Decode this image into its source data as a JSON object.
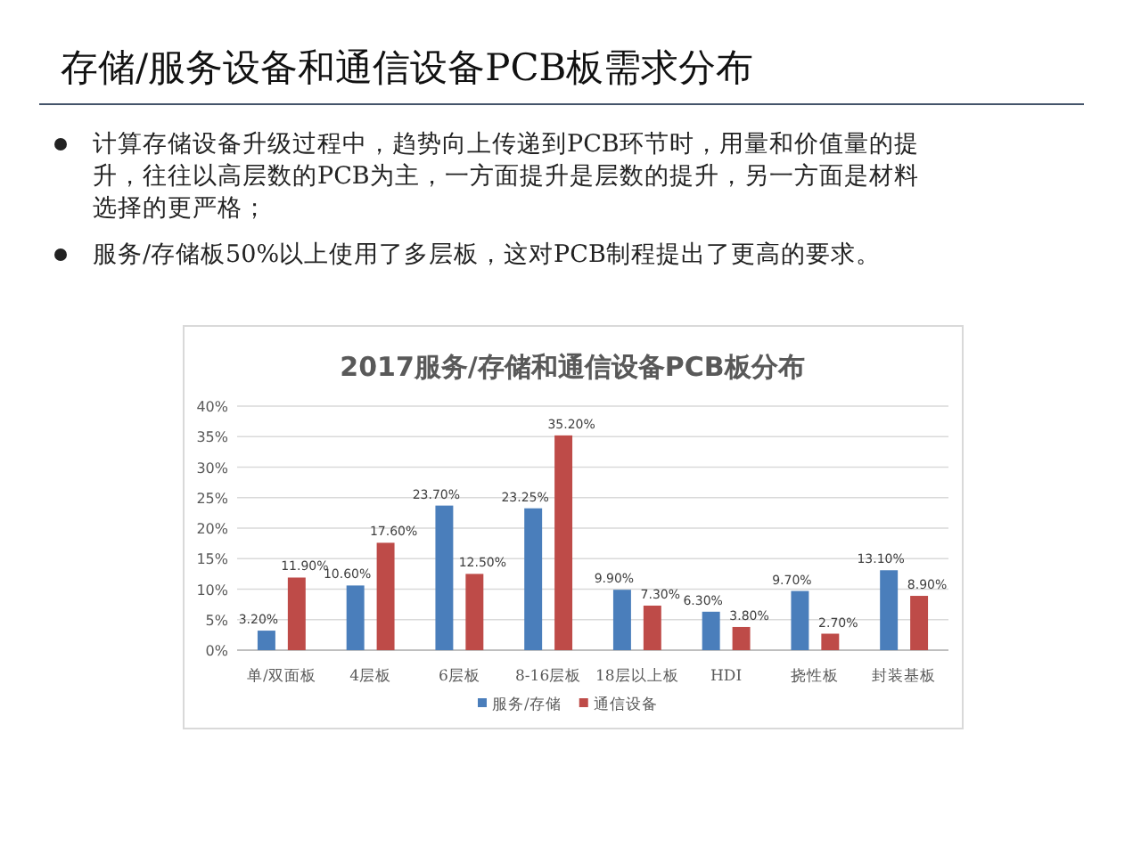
{
  "chart_data": {
    "type": "bar",
    "title": "2017服务/存储和通信设备PCB板分布",
    "annotations": [
      "存储/服务设备和通信设备PCB板需求分布",
      "计算存储设备升级过程中，趋势向上传递到PCB环节时，用量和价值量的提升，往往以高层数的PCB为主，一方面提升是层数的提升，另一方面是材料选择的更严格；",
      "服务/存储板50%以上使用了多层板，这对PCB制程提出了更高的要求。"
    ],
    "categories": [
      "单/双面板",
      "4层板",
      "6层板",
      "8-16层板",
      "18层以上板",
      "HDI",
      "挠性板",
      "封装基板"
    ],
    "series": [
      {
        "name": "服务/存储",
        "color": "#4a7ebb",
        "values": [
          3.2,
          10.6,
          23.7,
          23.25,
          9.9,
          6.3,
          9.7,
          13.1
        ],
        "value_labels": [
          "3.20%",
          "10.60%",
          "23.70%",
          "23.25%",
          "9.90%",
          "6.30%",
          "9.70%",
          "13.10%"
        ]
      },
      {
        "name": "通信设备",
        "color": "#be4b48",
        "values": [
          11.9,
          17.6,
          12.5,
          35.2,
          7.3,
          3.8,
          2.7,
          8.9
        ],
        "value_labels": [
          "11.90%",
          "17.60%",
          "12.50%",
          "35.20%",
          "7.30%",
          "3.80%",
          "2.70%",
          "8.90%"
        ]
      }
    ],
    "ylim": [
      0,
      40
    ],
    "yticks": [
      {
        "value": 0,
        "label": "0%"
      },
      {
        "value": 5,
        "label": "5%"
      },
      {
        "value": 10,
        "label": "10%"
      },
      {
        "value": 15,
        "label": "15%"
      },
      {
        "value": 20,
        "label": "20%"
      },
      {
        "value": 25,
        "label": "25%"
      },
      {
        "value": 30,
        "label": "30%"
      },
      {
        "value": 35,
        "label": "35%"
      },
      {
        "value": 40,
        "label": "40%"
      }
    ],
    "grid": "y",
    "legend": "bottom"
  }
}
